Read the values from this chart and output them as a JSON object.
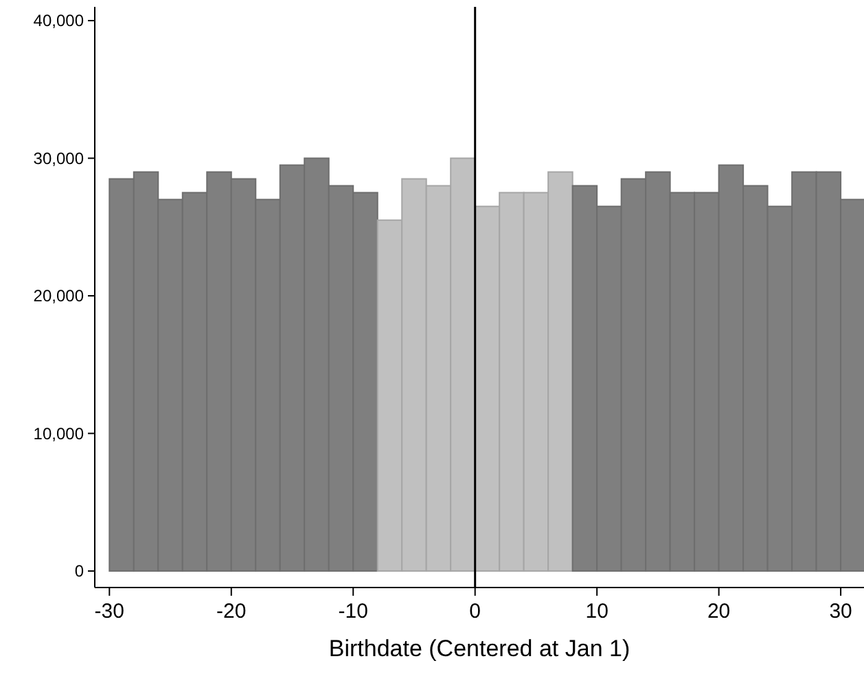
{
  "chart_data": {
    "type": "histogram",
    "xlabel": "Birthdate (Centered at Jan 1)",
    "bins": [
      -30,
      -28,
      -26,
      -24,
      -22,
      -20,
      -18,
      -16,
      -14,
      -12,
      -10,
      -8,
      -6,
      -4,
      -2,
      0,
      2,
      4,
      6,
      8,
      10,
      12,
      14,
      16,
      18,
      20,
      22,
      24,
      26,
      28,
      30,
      32
    ],
    "values": [
      28500,
      29000,
      27000,
      27500,
      29000,
      28500,
      27000,
      29500,
      30000,
      28000,
      27500,
      25500,
      28500,
      28000,
      30000,
      26500,
      27500,
      27500,
      29000,
      28000,
      26500,
      28500,
      29000,
      27500,
      27500,
      29500,
      28000,
      26500,
      29000,
      29000,
      27000
    ],
    "colors": [
      "#7f7f7f",
      "#7f7f7f",
      "#7f7f7f",
      "#7f7f7f",
      "#7f7f7f",
      "#7f7f7f",
      "#7f7f7f",
      "#7f7f7f",
      "#7f7f7f",
      "#7f7f7f",
      "#7f7f7f",
      "#c0c0c0",
      "#c0c0c0",
      "#c0c0c0",
      "#c0c0c0",
      "#c0c0c0",
      "#c0c0c0",
      "#c0c0c0",
      "#c0c0c0",
      "#7f7f7f",
      "#7f7f7f",
      "#7f7f7f",
      "#7f7f7f",
      "#7f7f7f",
      "#7f7f7f",
      "#7f7f7f",
      "#7f7f7f",
      "#7f7f7f",
      "#7f7f7f",
      "#7f7f7f",
      "#7f7f7f"
    ],
    "xlim": [
      -31.2,
      32
    ],
    "ylim": [
      -1200,
      41000
    ],
    "xticks": [
      {
        "value": -30,
        "label": "-30"
      },
      {
        "value": -20,
        "label": "-20"
      },
      {
        "value": -10,
        "label": "-10"
      },
      0,
      10,
      20,
      30
    ],
    "yticks": [
      0,
      {
        "value": 10000,
        "label": "10,000"
      },
      {
        "value": 20000,
        "label": "20,000"
      },
      {
        "value": 30000,
        "label": "30,000"
      },
      {
        "value": 40000,
        "label": "40,000"
      }
    ],
    "ref_lines": [
      {
        "axis": "x",
        "value": 0,
        "color": "#000000"
      }
    ],
    "grid": false
  }
}
